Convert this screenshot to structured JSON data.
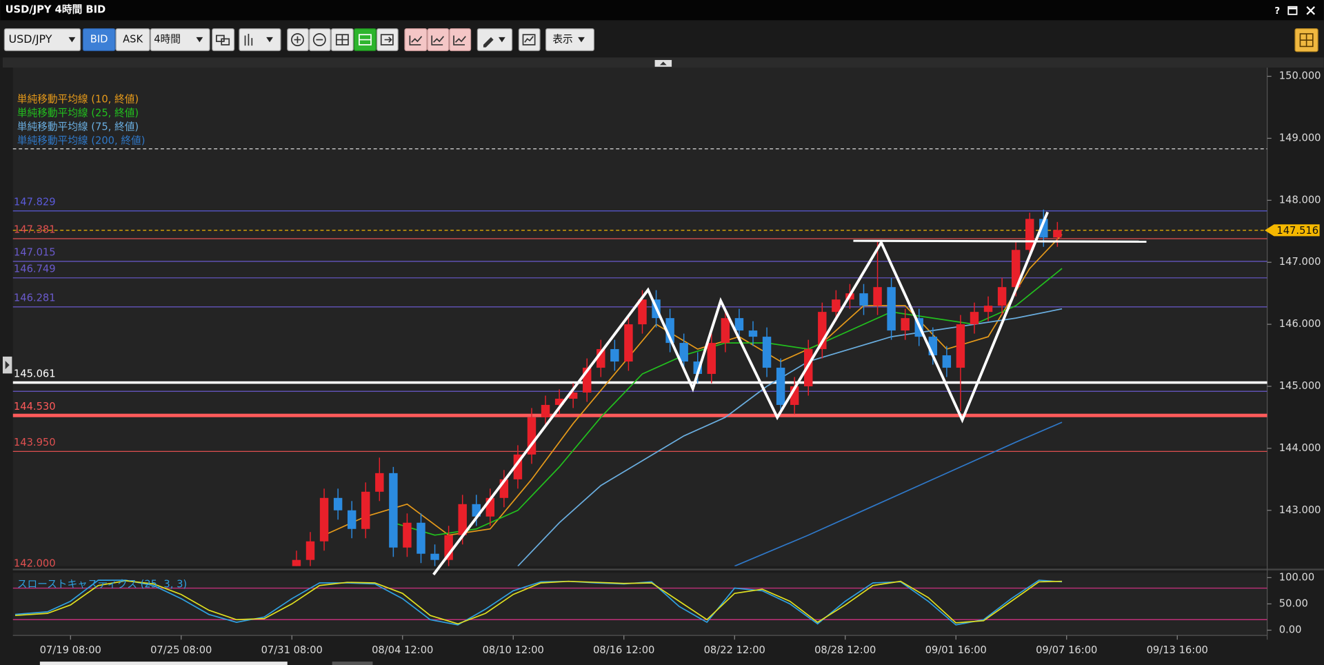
{
  "window": {
    "title": "USD/JPY 4時間 BID",
    "help": "?"
  },
  "toolbar": {
    "symbol": "USD/JPY",
    "bid": "BID",
    "ask": "ASK",
    "timeframe": "4時間",
    "display": "表示"
  },
  "chart_data": {
    "type": "candlestick",
    "x": [
      49,
      52,
      55,
      58,
      61,
      64,
      67,
      70,
      73,
      76,
      79,
      82,
      85,
      88,
      91,
      94,
      97,
      100,
      103,
      106,
      109,
      112,
      115,
      118,
      121,
      124,
      127,
      130,
      133,
      136,
      139,
      142,
      145,
      148,
      151,
      154,
      157,
      160,
      163,
      166,
      169,
      172,
      175,
      178,
      181,
      184,
      187,
      190,
      193,
      196,
      199,
      202,
      205,
      208,
      211,
      214
    ],
    "open": [
      142.0,
      142.2,
      142.5,
      143.2,
      143.0,
      142.7,
      143.3,
      143.6,
      142.4,
      142.8,
      142.3,
      142.2,
      142.6,
      143.1,
      142.9,
      143.2,
      143.5,
      143.9,
      144.5,
      144.7,
      144.8,
      144.9,
      145.3,
      145.6,
      145.4,
      146.0,
      146.4,
      146.1,
      145.7,
      145.4,
      145.2,
      145.7,
      146.1,
      145.9,
      145.8,
      145.3,
      144.7,
      145.0,
      145.6,
      146.2,
      146.4,
      146.5,
      146.3,
      146.6,
      145.9,
      146.1,
      145.8,
      145.5,
      145.3,
      146.0,
      146.2,
      146.3,
      146.6,
      147.2,
      147.7,
      147.4
    ],
    "high": [
      142.35,
      142.65,
      143.35,
      143.35,
      143.15,
      143.45,
      143.85,
      143.7,
      142.95,
      142.95,
      142.45,
      142.75,
      143.25,
      143.25,
      143.35,
      143.65,
      144.05,
      144.65,
      144.85,
      144.95,
      145.05,
      145.45,
      145.75,
      145.75,
      146.15,
      146.55,
      146.55,
      146.25,
      145.85,
      145.55,
      145.85,
      146.25,
      146.25,
      146.05,
      145.95,
      145.45,
      145.15,
      145.75,
      146.35,
      146.55,
      146.65,
      146.65,
      147.35,
      146.75,
      146.25,
      146.25,
      145.95,
      145.65,
      146.15,
      146.35,
      146.45,
      146.75,
      147.35,
      147.8,
      147.85,
      147.65
    ],
    "low": [
      141.85,
      142.05,
      142.35,
      142.85,
      142.55,
      142.55,
      143.15,
      142.25,
      142.25,
      142.15,
      142.05,
      142.05,
      142.45,
      142.75,
      142.75,
      143.05,
      143.35,
      143.75,
      144.35,
      144.55,
      144.65,
      144.75,
      145.15,
      145.25,
      145.25,
      145.85,
      145.95,
      145.55,
      145.25,
      145.05,
      145.05,
      145.55,
      145.75,
      145.65,
      145.15,
      144.55,
      144.55,
      144.85,
      145.45,
      146.05,
      146.25,
      146.15,
      146.15,
      145.75,
      145.75,
      145.65,
      145.35,
      145.15,
      144.6,
      145.85,
      146.05,
      146.15,
      146.45,
      147.05,
      147.25,
      147.25
    ],
    "close": [
      142.2,
      142.5,
      143.2,
      143.0,
      142.7,
      143.3,
      143.6,
      142.4,
      142.8,
      142.3,
      142.2,
      142.6,
      143.1,
      142.9,
      143.2,
      143.5,
      143.9,
      144.5,
      144.7,
      144.8,
      144.9,
      145.3,
      145.6,
      145.4,
      146.0,
      146.4,
      146.1,
      145.7,
      145.4,
      145.2,
      145.7,
      146.1,
      145.9,
      145.8,
      145.3,
      144.7,
      145.0,
      145.6,
      146.2,
      146.4,
      146.5,
      146.3,
      146.6,
      145.9,
      146.1,
      145.8,
      145.5,
      145.3,
      146.0,
      146.2,
      146.3,
      146.6,
      147.2,
      147.7,
      147.4,
      147.52
    ],
    "up_color": "#e8202a",
    "down_color": "#2b8be0",
    "xlim": [
      -12.5,
      259.5
    ],
    "xticks": [
      {
        "value": 0,
        "label": "07/19 08:00"
      },
      {
        "value": 24,
        "label": "07/25 08:00"
      },
      {
        "value": 48,
        "label": "07/31 08:00"
      },
      {
        "value": 72,
        "label": "08/04 12:00"
      },
      {
        "value": 96,
        "label": "08/10 12:00"
      },
      {
        "value": 120,
        "label": "08/16 12:00"
      },
      {
        "value": 144,
        "label": "08/22 12:00"
      },
      {
        "value": 168,
        "label": "08/28 12:00"
      },
      {
        "value": 192,
        "label": "09/01 16:00"
      },
      {
        "value": 216,
        "label": "09/07 16:00"
      },
      {
        "value": 240,
        "label": "09/13 16:00"
      }
    ],
    "ylim": [
      142.1,
      150.14
    ],
    "yticks": [
      {
        "value": 143,
        "label": "143.000"
      },
      {
        "value": 144,
        "label": "144.000"
      },
      {
        "value": 145,
        "label": "145.000"
      },
      {
        "value": 146,
        "label": "146.000"
      },
      {
        "value": 147,
        "label": "147.000"
      },
      {
        "value": 148,
        "label": "148.000"
      },
      {
        "value": 149,
        "label": "149.000"
      },
      {
        "value": 150,
        "label": "150.000"
      }
    ],
    "moving_averages": [
      {
        "name": "単純移動平均線 (10, 終値)",
        "color": "#e69a1a",
        "x": [
          55,
          64,
          73,
          82,
          91,
          100,
          109,
          118,
          127,
          136,
          145,
          154,
          163,
          172,
          181,
          190,
          199,
          208,
          215
        ],
        "values": [
          142.6,
          142.9,
          143.1,
          142.6,
          142.7,
          143.5,
          144.4,
          145.2,
          146.0,
          145.6,
          145.8,
          145.4,
          145.7,
          146.3,
          146.3,
          145.6,
          145.8,
          146.9,
          147.45
        ]
      },
      {
        "name": "単純移動平均線 (25, 終値)",
        "color": "#22c01e",
        "x": [
          70,
          79,
          88,
          97,
          106,
          115,
          124,
          133,
          142,
          151,
          160,
          169,
          178,
          187,
          196,
          205,
          215
        ],
        "values": [
          142.8,
          142.6,
          142.7,
          143.0,
          143.7,
          144.5,
          145.2,
          145.5,
          145.7,
          145.7,
          145.6,
          145.9,
          146.2,
          146.1,
          146.0,
          146.3,
          146.9
        ]
      },
      {
        "name": "単純移動平均線 (75, 終値)",
        "color": "#6aaee0",
        "x": [
          97,
          106,
          115,
          124,
          133,
          142,
          151,
          160,
          169,
          178,
          187,
          196,
          205,
          215
        ],
        "values": [
          142.1,
          142.8,
          143.4,
          143.8,
          144.2,
          144.5,
          145.0,
          145.4,
          145.6,
          145.8,
          145.9,
          146.0,
          146.1,
          146.25
        ]
      },
      {
        "name": "単純移動平均線 (200, 終値)",
        "color": "#2f78c8",
        "x": [
          144,
          160,
          175,
          190,
          205,
          215
        ],
        "values": [
          142.1,
          142.6,
          143.1,
          143.6,
          144.1,
          144.42
        ]
      }
    ],
    "levels": [
      {
        "value": 148.83,
        "color": "#dddddd",
        "width": 1,
        "dash": true
      },
      {
        "value": 147.829,
        "label": "147.829",
        "color": "#5a5ad8",
        "width": 1
      },
      {
        "value": 147.381,
        "label": "147.381",
        "color": "#e05050",
        "width": 1
      },
      {
        "value": 147.015,
        "label": "147.015",
        "color": "#6a5acd",
        "width": 1
      },
      {
        "value": 146.749,
        "label": "146.749",
        "color": "#6a5acd",
        "width": 1
      },
      {
        "value": 146.281,
        "label": "146.281",
        "color": "#6a5acd",
        "width": 1
      },
      {
        "value": 145.061,
        "label": "145.061",
        "color": "#ffffff",
        "width": 3
      },
      {
        "value": 144.92,
        "color": "#6a5acd",
        "width": 1
      },
      {
        "value": 144.53,
        "label": "144.530",
        "color": "#ff5a5a",
        "width": 4
      },
      {
        "value": 143.95,
        "label": "143.950",
        "color": "#e05050",
        "width": 1
      },
      {
        "value": 142.0,
        "label": "142.000",
        "color": "#e05050",
        "width": 1
      }
    ],
    "last_price": {
      "value": 147.516,
      "label": "147.516",
      "color": "#f5b800"
    },
    "oscillator": {
      "type": "line",
      "name": "スローストキャスティクス (25, 3, 3)",
      "ylim": [
        -10,
        109
      ],
      "yticks": [
        {
          "value": 0,
          "label": "0.00"
        },
        {
          "value": 50,
          "label": "50.00"
        },
        {
          "value": 100,
          "label": "100.00"
        }
      ],
      "levels": [
        20,
        80
      ],
      "level_color": "#c0307a",
      "series": [
        {
          "color": "#2fa0e0",
          "x": [
            -12,
            -5,
            0,
            6,
            12,
            18,
            24,
            30,
            36,
            42,
            48,
            54,
            60,
            66,
            72,
            78,
            84,
            90,
            96,
            102,
            108,
            114,
            120,
            126,
            132,
            138,
            144,
            150,
            156,
            162,
            168,
            174,
            180,
            186,
            192,
            198,
            204,
            210,
            215
          ],
          "values": [
            30,
            35,
            55,
            95,
            95,
            85,
            60,
            30,
            15,
            25,
            60,
            90,
            90,
            88,
            60,
            20,
            10,
            40,
            75,
            92,
            93,
            90,
            88,
            92,
            45,
            15,
            80,
            75,
            50,
            12,
            55,
            90,
            92,
            55,
            10,
            20,
            60,
            95,
            92
          ]
        },
        {
          "color": "#e0e020",
          "x": [
            -12,
            -5,
            0,
            6,
            12,
            18,
            24,
            30,
            36,
            42,
            48,
            54,
            60,
            66,
            72,
            78,
            84,
            90,
            96,
            102,
            108,
            114,
            120,
            126,
            132,
            138,
            144,
            150,
            156,
            162,
            168,
            174,
            180,
            186,
            192,
            198,
            204,
            210,
            215
          ],
          "values": [
            28,
            32,
            48,
            85,
            94,
            88,
            68,
            38,
            20,
            22,
            50,
            85,
            91,
            90,
            70,
            28,
            12,
            32,
            68,
            90,
            93,
            91,
            89,
            90,
            55,
            20,
            70,
            78,
            55,
            15,
            48,
            85,
            93,
            62,
            14,
            18,
            55,
            92,
            93
          ]
        }
      ]
    }
  }
}
